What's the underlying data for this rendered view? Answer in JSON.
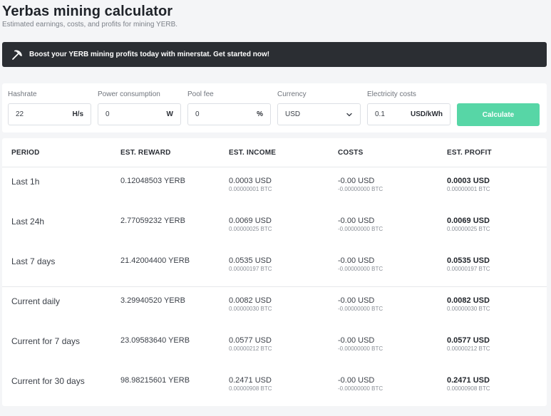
{
  "header": {
    "title": "Yerbas mining calculator",
    "subtitle": "Estimated earnings, costs, and profits for mining YERB."
  },
  "banner": {
    "text": "Boost your YERB mining profits today with minerstat. Get started now!",
    "icon": "pickaxe-icon"
  },
  "form": {
    "hashrate": {
      "label": "Hashrate",
      "value": "22",
      "unit": "H/s"
    },
    "power": {
      "label": "Power consumption",
      "value": "0",
      "unit": "W"
    },
    "pool_fee": {
      "label": "Pool fee",
      "value": "0",
      "unit": "%"
    },
    "currency": {
      "label": "Currency",
      "value": "USD"
    },
    "electricity": {
      "label": "Electricity costs",
      "value": "0.1",
      "unit": "USD/kWh"
    },
    "calculate_label": "Calculate"
  },
  "table": {
    "headers": [
      "PERIOD",
      "EST. REWARD",
      "EST. INCOME",
      "COSTS",
      "EST. PROFIT"
    ],
    "rows": [
      {
        "period": "Last 1h",
        "reward": "0.12048503 YERB",
        "income": "0.0003 USD",
        "income_btc": "0.00000001 BTC",
        "costs": "-0.00 USD",
        "costs_btc": "-0.00000000 BTC",
        "profit": "0.0003 USD",
        "profit_btc": "0.00000001 BTC"
      },
      {
        "period": "Last 24h",
        "reward": "2.77059232 YERB",
        "income": "0.0069 USD",
        "income_btc": "0.00000025 BTC",
        "costs": "-0.00 USD",
        "costs_btc": "-0.00000000 BTC",
        "profit": "0.0069 USD",
        "profit_btc": "0.00000025 BTC"
      },
      {
        "period": "Last 7 days",
        "reward": "21.42004400 YERB",
        "income": "0.0535 USD",
        "income_btc": "0.00000197 BTC",
        "costs": "-0.00 USD",
        "costs_btc": "-0.00000000 BTC",
        "profit": "0.0535 USD",
        "profit_btc": "0.00000197 BTC"
      },
      {
        "period": "Current daily",
        "reward": "3.29940520 YERB",
        "income": "0.0082 USD",
        "income_btc": "0.00000030 BTC",
        "costs": "-0.00 USD",
        "costs_btc": "-0.00000000 BTC",
        "profit": "0.0082 USD",
        "profit_btc": "0.00000030 BTC"
      },
      {
        "period": "Current for 7 days",
        "reward": "23.09583640 YERB",
        "income": "0.0577 USD",
        "income_btc": "0.00000212 BTC",
        "costs": "-0.00 USD",
        "costs_btc": "-0.00000000 BTC",
        "profit": "0.0577 USD",
        "profit_btc": "0.00000212 BTC"
      },
      {
        "period": "Current for 30 days",
        "reward": "98.98215601 YERB",
        "income": "0.2471 USD",
        "income_btc": "0.00000908 BTC",
        "costs": "-0.00 USD",
        "costs_btc": "-0.00000000 BTC",
        "profit": "0.2471 USD",
        "profit_btc": "0.00000908 BTC"
      }
    ]
  },
  "colors": {
    "banner_bg": "#2b2e33",
    "accent": "#57d6a6",
    "page_bg": "#f4f5f7"
  }
}
